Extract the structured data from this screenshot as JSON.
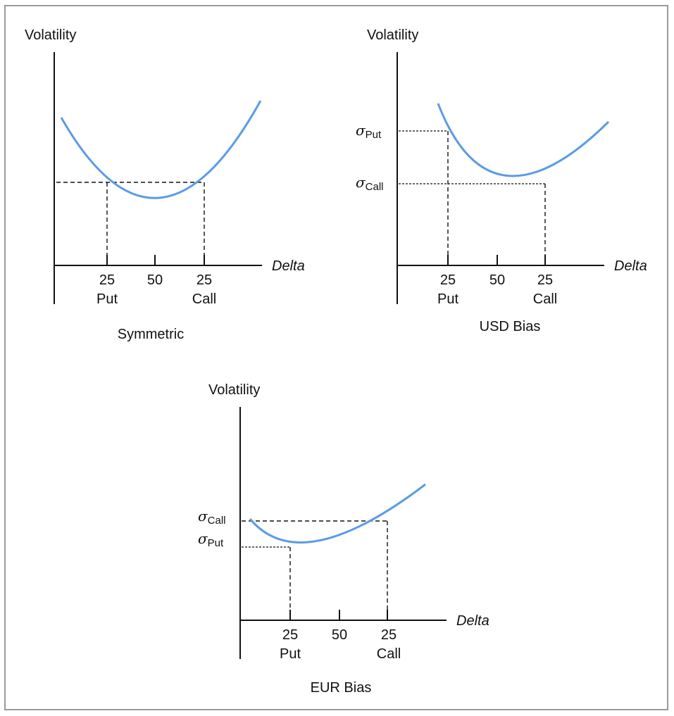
{
  "colors": {
    "curve": "#5b9be6",
    "axis": "#111111",
    "guide": "#111111",
    "frame": "#9a9a9a"
  },
  "panels": [
    {
      "id": "symmetric",
      "y_axis_label": "Volatility",
      "x_axis_label": "Delta",
      "caption": "Symmetric",
      "ticks": [
        {
          "value": "25",
          "sub": "Put"
        },
        {
          "value": "50",
          "sub": ""
        },
        {
          "value": "25",
          "sub": "Call"
        }
      ],
      "sigma_labels": []
    },
    {
      "id": "usd-bias",
      "y_axis_label": "Volatility",
      "x_axis_label": "Delta",
      "caption": "USD Bias",
      "ticks": [
        {
          "value": "25",
          "sub": "Put"
        },
        {
          "value": "50",
          "sub": ""
        },
        {
          "value": "25",
          "sub": "Call"
        }
      ],
      "sigma_labels": [
        {
          "symbol": "σ",
          "sub": "Put"
        },
        {
          "symbol": "σ",
          "sub": "Call"
        }
      ]
    },
    {
      "id": "eur-bias",
      "y_axis_label": "Volatility",
      "x_axis_label": "Delta",
      "caption": "EUR Bias",
      "ticks": [
        {
          "value": "25",
          "sub": "Put"
        },
        {
          "value": "50",
          "sub": ""
        },
        {
          "value": "25",
          "sub": "Call"
        }
      ],
      "sigma_labels": [
        {
          "symbol": "σ",
          "sub": "Call"
        },
        {
          "symbol": "σ",
          "sub": "Put"
        }
      ]
    }
  ]
}
